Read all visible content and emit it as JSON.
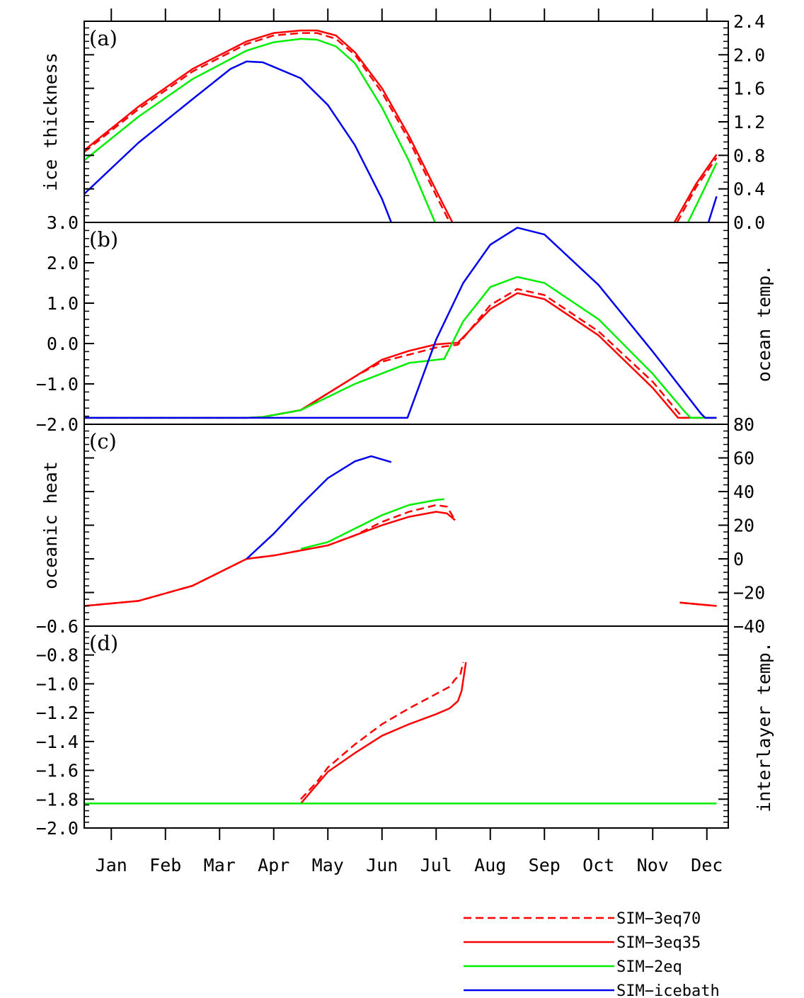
{
  "months": [
    "Jan",
    "Feb",
    "Mar",
    "Apr",
    "May",
    "Jun",
    "Jul",
    "Aug",
    "Sep",
    "Oct",
    "Nov",
    "Dec"
  ],
  "colors": {
    "red": "#ff0000",
    "green": "#00ee00",
    "blue": "#0000ee"
  },
  "legend": [
    {
      "label": "SIM−3eq70",
      "color": "#ff0000",
      "dash": true
    },
    {
      "label": "SIM−3eq35",
      "color": "#ff0000",
      "dash": false
    },
    {
      "label": "SIM−2eq",
      "color": "#00ee00",
      "dash": false
    },
    {
      "label": "SIM−icebath",
      "color": "#0000ee",
      "dash": false
    }
  ],
  "chart_data": [
    {
      "panel": "(a)",
      "type": "line",
      "ylabel": "ice thickness",
      "ylabel_side": "left",
      "ylim": [
        0,
        2.4
      ],
      "tick_side": "right",
      "ticks": [
        0,
        0.4,
        0.8,
        1.2,
        1.6,
        2.0,
        2.4
      ],
      "tick_labels": [
        "0.0",
        "0.4",
        "0.8",
        "1.2",
        "1.6",
        "2.0",
        "2.4"
      ],
      "series": [
        {
          "name": "SIM-3eq70",
          "color": "red",
          "dash": true,
          "segments": [
            [
              [
                0,
                0.84
              ],
              [
                1,
                1.35
              ],
              [
                2,
                1.8
              ],
              [
                3,
                2.13
              ],
              [
                3.5,
                2.23
              ],
              [
                4,
                2.26
              ],
              [
                4.3,
                2.26
              ],
              [
                4.65,
                2.19
              ],
              [
                5,
                2.0
              ],
              [
                5.5,
                1.55
              ],
              [
                6,
                0.98
              ],
              [
                6.5,
                0.32
              ],
              [
                6.75,
                0.0
              ]
            ],
            [
              [
                10.95,
                0.0
              ],
              [
                11.3,
                0.42
              ],
              [
                11.68,
                0.77
              ]
            ]
          ]
        },
        {
          "name": "SIM-3eq35",
          "color": "red",
          "dash": false,
          "segments": [
            [
              [
                0,
                0.86
              ],
              [
                1,
                1.38
              ],
              [
                2,
                1.83
              ],
              [
                3,
                2.16
              ],
              [
                3.5,
                2.26
              ],
              [
                4,
                2.29
              ],
              [
                4.3,
                2.29
              ],
              [
                4.65,
                2.23
              ],
              [
                5,
                2.03
              ],
              [
                5.5,
                1.6
              ],
              [
                6,
                1.03
              ],
              [
                6.5,
                0.38
              ],
              [
                6.8,
                0.0
              ]
            ],
            [
              [
                10.9,
                0.0
              ],
              [
                11.3,
                0.46
              ],
              [
                11.68,
                0.81
              ]
            ]
          ]
        },
        {
          "name": "SIM-2eq",
          "color": "green",
          "dash": false,
          "segments": [
            [
              [
                0,
                0.74
              ],
              [
                1,
                1.26
              ],
              [
                2,
                1.71
              ],
              [
                3,
                2.05
              ],
              [
                3.5,
                2.15
              ],
              [
                4,
                2.19
              ],
              [
                4.3,
                2.18
              ],
              [
                4.65,
                2.1
              ],
              [
                5,
                1.9
              ],
              [
                5.5,
                1.37
              ],
              [
                6,
                0.73
              ],
              [
                6.48,
                0.0
              ]
            ],
            [
              [
                11.15,
                0.0
              ],
              [
                11.4,
                0.33
              ],
              [
                11.68,
                0.71
              ]
            ]
          ]
        },
        {
          "name": "SIM-icebath",
          "color": "blue",
          "dash": false,
          "segments": [
            [
              [
                0,
                0.34
              ],
              [
                1,
                0.95
              ],
              [
                2,
                1.47
              ],
              [
                2.7,
                1.83
              ],
              [
                3,
                1.92
              ],
              [
                3.3,
                1.91
              ],
              [
                4,
                1.72
              ],
              [
                4.5,
                1.4
              ],
              [
                5,
                0.92
              ],
              [
                5.5,
                0.28
              ],
              [
                5.67,
                0.0
              ]
            ],
            [
              [
                11.53,
                0.0
              ],
              [
                11.68,
                0.31
              ]
            ]
          ]
        }
      ]
    },
    {
      "panel": "(b)",
      "type": "line",
      "ylabel": "ocean temp.",
      "ylabel_side": "right",
      "ylim": [
        -2.0,
        3.0
      ],
      "tick_side": "left",
      "ticks": [
        -2,
        -1,
        0,
        1,
        2,
        3
      ],
      "tick_labels": [
        "−2.0",
        "−1.0",
        "0.0",
        "1.0",
        "2.0",
        "3.0"
      ],
      "series": [
        {
          "name": "SIM-3eq70",
          "color": "red",
          "dash": true,
          "segments": [
            [
              [
                0,
                -1.84
              ],
              [
                3,
                -1.84
              ],
              [
                3.3,
                -1.82
              ],
              [
                4,
                -1.65
              ],
              [
                5,
                -0.82
              ],
              [
                5.5,
                -0.45
              ],
              [
                6.5,
                -0.1
              ],
              [
                6.9,
                -0.03
              ],
              [
                7.5,
                0.95
              ],
              [
                8,
                1.35
              ],
              [
                8.5,
                1.2
              ],
              [
                9.5,
                0.3
              ],
              [
                10.5,
                -0.95
              ],
              [
                11,
                -1.75
              ],
              [
                11.05,
                -1.84
              ],
              [
                11.68,
                -1.84
              ]
            ]
          ]
        },
        {
          "name": "SIM-3eq35",
          "color": "red",
          "dash": false,
          "segments": [
            [
              [
                0,
                -1.84
              ],
              [
                3,
                -1.84
              ],
              [
                3.3,
                -1.82
              ],
              [
                4,
                -1.65
              ],
              [
                5,
                -0.82
              ],
              [
                5.5,
                -0.4
              ],
              [
                6,
                -0.18
              ],
              [
                6.5,
                -0.02
              ],
              [
                6.9,
                0.02
              ],
              [
                7.5,
                0.85
              ],
              [
                8,
                1.25
              ],
              [
                8.5,
                1.1
              ],
              [
                9.5,
                0.2
              ],
              [
                10.5,
                -1.1
              ],
              [
                10.97,
                -1.84
              ],
              [
                11.68,
                -1.84
              ]
            ]
          ]
        },
        {
          "name": "SIM-2eq",
          "color": "green",
          "dash": false,
          "segments": [
            [
              [
                0,
                -1.84
              ],
              [
                3,
                -1.84
              ],
              [
                3.3,
                -1.82
              ],
              [
                4,
                -1.65
              ],
              [
                5,
                -1.0
              ],
              [
                6,
                -0.48
              ],
              [
                6.65,
                -0.38
              ],
              [
                7,
                0.55
              ],
              [
                7.5,
                1.4
              ],
              [
                8,
                1.65
              ],
              [
                8.5,
                1.5
              ],
              [
                9.5,
                0.6
              ],
              [
                10.5,
                -0.75
              ],
              [
                11.1,
                -1.7
              ],
              [
                11.2,
                -1.84
              ],
              [
                11.68,
                -1.84
              ]
            ]
          ]
        },
        {
          "name": "SIM-icebath",
          "color": "blue",
          "dash": false,
          "segments": [
            [
              [
                0,
                -1.84
              ],
              [
                5.97,
                -1.84
              ],
              [
                6.5,
                0.1
              ],
              [
                7,
                1.5
              ],
              [
                7.5,
                2.45
              ],
              [
                8,
                2.87
              ],
              [
                8.5,
                2.7
              ],
              [
                9.5,
                1.45
              ],
              [
                10.5,
                -0.2
              ],
              [
                11.4,
                -1.75
              ],
              [
                11.47,
                -1.84
              ],
              [
                11.68,
                -1.84
              ]
            ]
          ]
        }
      ]
    },
    {
      "panel": "(c)",
      "type": "line",
      "ylabel": "oceanic heat",
      "ylabel_side": "left",
      "ylim": [
        -40,
        80
      ],
      "tick_side": "right",
      "ticks": [
        -40,
        -20,
        0,
        20,
        40,
        60,
        80
      ],
      "tick_labels": [
        "−40",
        "−20",
        "0",
        "20",
        "40",
        "60",
        "80"
      ],
      "series": [
        {
          "name": "SIM-3eq70",
          "color": "red",
          "dash": true,
          "segments": [
            [
              [
                0,
                -28
              ],
              [
                1,
                -25
              ],
              [
                2,
                -16
              ],
              [
                3,
                0
              ],
              [
                3.5,
                2
              ],
              [
                4,
                5
              ],
              [
                4.5,
                8
              ],
              [
                5,
                14
              ],
              [
                5.5,
                22
              ],
              [
                6,
                28
              ],
              [
                6.5,
                32
              ],
              [
                6.7,
                31
              ],
              [
                6.85,
                23
              ]
            ],
            [
              [
                11.0,
                -26
              ],
              [
                11.68,
                -28
              ]
            ]
          ]
        },
        {
          "name": "SIM-3eq35",
          "color": "red",
          "dash": false,
          "segments": [
            [
              [
                0,
                -28
              ],
              [
                1,
                -25
              ],
              [
                2,
                -16
              ],
              [
                3,
                0
              ],
              [
                3.5,
                2
              ],
              [
                4,
                5
              ],
              [
                4.5,
                8
              ],
              [
                5,
                14
              ],
              [
                5.5,
                20
              ],
              [
                6,
                25
              ],
              [
                6.5,
                28
              ],
              [
                6.7,
                27
              ],
              [
                6.85,
                23
              ]
            ],
            [
              [
                11.0,
                -26
              ],
              [
                11.68,
                -28
              ]
            ]
          ]
        },
        {
          "name": "SIM-2eq",
          "color": "green",
          "dash": false,
          "segments": [
            [
              [
                4,
                6
              ],
              [
                4.5,
                10
              ],
              [
                5,
                18
              ],
              [
                5.5,
                26
              ],
              [
                6,
                32
              ],
              [
                6.5,
                35
              ],
              [
                6.65,
                35.5
              ]
            ]
          ]
        },
        {
          "name": "SIM-icebath",
          "color": "blue",
          "dash": false,
          "segments": [
            [
              [
                3,
                0
              ],
              [
                3.5,
                15
              ],
              [
                4,
                32
              ],
              [
                4.5,
                48
              ],
              [
                5,
                58
              ],
              [
                5.3,
                61
              ],
              [
                5.67,
                57.5
              ]
            ]
          ]
        }
      ]
    },
    {
      "panel": "(d)",
      "type": "line",
      "ylabel": "interlayer temp.",
      "ylabel_side": "right",
      "ylim": [
        -2.0,
        -0.6
      ],
      "tick_side": "left",
      "ticks": [
        -2.0,
        -1.8,
        -1.6,
        -1.4,
        -1.2,
        -1.0,
        -0.8,
        -0.6
      ],
      "tick_labels": [
        "−2.0",
        "−1.8",
        "−1.6",
        "−1.4",
        "−1.2",
        "−1.0",
        "−0.8",
        "−0.6"
      ],
      "series": [
        {
          "name": "SIM-3eq70",
          "color": "red",
          "dash": true,
          "segments": [
            [
              [
                4,
                -1.8
              ],
              [
                4.3,
                -1.68
              ],
              [
                4.5,
                -1.58
              ],
              [
                5,
                -1.42
              ],
              [
                5.5,
                -1.28
              ],
              [
                6,
                -1.17
              ],
              [
                6.5,
                -1.07
              ],
              [
                6.75,
                -1.02
              ],
              [
                6.85,
                -0.97
              ],
              [
                6.95,
                -0.93
              ],
              [
                7.0,
                -0.85
              ]
            ]
          ]
        },
        {
          "name": "SIM-3eq35",
          "color": "red",
          "dash": false,
          "segments": [
            [
              [
                4,
                -1.83
              ],
              [
                4.5,
                -1.61
              ],
              [
                5,
                -1.48
              ],
              [
                5.5,
                -1.36
              ],
              [
                6,
                -1.28
              ],
              [
                6.5,
                -1.21
              ],
              [
                6.75,
                -1.17
              ],
              [
                6.9,
                -1.12
              ],
              [
                6.97,
                -1.05
              ],
              [
                7.05,
                -0.85
              ]
            ]
          ]
        },
        {
          "name": "SIM-2eq",
          "color": "green",
          "dash": false,
          "segments": [
            [
              [
                0,
                -1.83
              ],
              [
                11.68,
                -1.83
              ]
            ]
          ]
        }
      ]
    }
  ]
}
